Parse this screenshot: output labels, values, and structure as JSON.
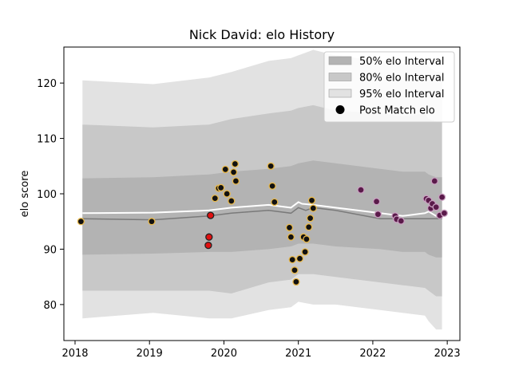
{
  "chart_data": {
    "type": "scatter",
    "title": "Nick David: elo History",
    "xlabel": "",
    "ylabel": "elo score",
    "xlim": [
      2017.85,
      2023.17
    ],
    "ylim": [
      73.5,
      126.5
    ],
    "x_ticks": [
      2018,
      2019,
      2020,
      2021,
      2022,
      2023
    ],
    "x_tick_labels": [
      "2018",
      "2019",
      "2020",
      "2021",
      "2022",
      "2023"
    ],
    "y_ticks": [
      80,
      90,
      100,
      110,
      120
    ],
    "y_tick_labels": [
      "80",
      "90",
      "100",
      "110",
      "120"
    ],
    "grid": false,
    "legend_position": "top-right",
    "legend": [
      {
        "label": "50% elo Interval",
        "kind": "band",
        "color": "#b3b3b3"
      },
      {
        "label": "80% elo Interval",
        "kind": "band",
        "color": "#c8c8c8"
      },
      {
        "label": "95% elo Interval",
        "kind": "band",
        "color": "#e2e2e2"
      },
      {
        "label": "Post Match elo",
        "kind": "marker",
        "color": "#000000"
      }
    ],
    "band_x": [
      2018.1,
      2019.05,
      2019.8,
      2020.1,
      2020.6,
      2020.9,
      2021.0,
      2021.2,
      2021.5,
      2022.1,
      2022.4,
      2022.7,
      2022.75,
      2022.85,
      2022.93
    ],
    "bands": {
      "p95": {
        "upper": [
          120.5,
          119.8,
          121.0,
          122.0,
          124.0,
          124.5,
          125.0,
          126.0,
          125.0,
          124.0,
          123.5,
          124.0,
          123.0,
          122.0,
          122.0
        ],
        "lower": [
          77.5,
          78.5,
          77.5,
          77.5,
          79.0,
          79.5,
          80.5,
          80.0,
          80.0,
          79.0,
          78.5,
          78.0,
          77.0,
          75.5,
          75.5
        ]
      },
      "p80": {
        "upper": [
          112.5,
          112.0,
          112.5,
          113.5,
          114.5,
          115.0,
          115.5,
          116.0,
          115.0,
          114.5,
          114.0,
          114.5,
          113.5,
          113.0,
          113.0
        ],
        "lower": [
          82.5,
          82.5,
          82.5,
          82.0,
          84.0,
          84.5,
          85.5,
          85.5,
          85.0,
          84.0,
          83.5,
          83.0,
          82.5,
          81.5,
          81.5
        ]
      },
      "p50": {
        "upper": [
          102.8,
          103.0,
          103.5,
          104.0,
          104.5,
          105.0,
          105.5,
          106.0,
          105.5,
          104.5,
          104.0,
          104.0,
          103.5,
          103.0,
          103.0
        ],
        "lower": [
          89.0,
          89.2,
          89.5,
          89.5,
          90.0,
          90.5,
          91.0,
          91.0,
          90.5,
          90.0,
          89.5,
          89.5,
          89.0,
          88.5,
          88.5
        ]
      }
    },
    "mean_line": {
      "x": [
        2018.1,
        2019.05,
        2019.8,
        2020.1,
        2020.6,
        2020.9,
        2021.0,
        2021.1,
        2021.2,
        2021.5,
        2022.1,
        2022.4,
        2022.7,
        2022.8,
        2022.93
      ],
      "y": [
        95.5,
        95.3,
        96.0,
        96.5,
        97.0,
        96.5,
        97.5,
        97.0,
        97.5,
        97.0,
        95.5,
        95.5,
        95.5,
        95.5,
        95.5
      ]
    },
    "median_line": {
      "x": [
        2018.1,
        2019.05,
        2019.8,
        2020.1,
        2020.6,
        2020.9,
        2021.0,
        2021.05,
        2021.2,
        2021.5,
        2022.1,
        2022.4,
        2022.7,
        2022.75,
        2022.85,
        2022.93
      ],
      "y": [
        96.5,
        96.6,
        97.0,
        97.5,
        98.0,
        97.5,
        98.5,
        98.2,
        98.0,
        97.5,
        96.5,
        96.0,
        96.5,
        96.8,
        96.0,
        96.2
      ]
    },
    "series": [
      {
        "style": "gold-edge",
        "fill": "#111111",
        "edge": "#e8b84a",
        "points": [
          [
            2018.08,
            95.0
          ],
          [
            2019.03,
            95.0
          ],
          [
            2019.88,
            99.2
          ],
          [
            2019.93,
            101.0
          ],
          [
            2019.96,
            101.1
          ],
          [
            2020.02,
            104.4
          ],
          [
            2020.04,
            100.0
          ],
          [
            2020.1,
            98.7
          ],
          [
            2020.13,
            103.9
          ],
          [
            2020.15,
            105.4
          ],
          [
            2020.16,
            102.3
          ],
          [
            2020.63,
            105.0
          ],
          [
            2020.65,
            101.4
          ],
          [
            2020.68,
            98.5
          ],
          [
            2020.88,
            93.9
          ],
          [
            2020.9,
            92.2
          ],
          [
            2020.92,
            88.1
          ],
          [
            2020.95,
            86.2
          ],
          [
            2020.97,
            84.1
          ],
          [
            2021.02,
            88.3
          ],
          [
            2021.07,
            92.2
          ],
          [
            2021.09,
            89.5
          ],
          [
            2021.11,
            91.8
          ],
          [
            2021.14,
            94.0
          ],
          [
            2021.16,
            95.6
          ],
          [
            2021.18,
            98.8
          ],
          [
            2021.2,
            97.4
          ]
        ]
      },
      {
        "style": "red",
        "fill": "#e01010",
        "edge": "#222222",
        "points": [
          [
            2019.79,
            90.7
          ],
          [
            2019.8,
            92.2
          ],
          [
            2019.82,
            96.1
          ]
        ]
      },
      {
        "style": "purple",
        "fill": "#5a1a4a",
        "edge": "#c9a0c0",
        "points": [
          [
            2021.84,
            100.7
          ],
          [
            2022.05,
            98.6
          ],
          [
            2022.07,
            96.3
          ],
          [
            2022.3,
            96.0
          ],
          [
            2022.32,
            95.4
          ],
          [
            2022.38,
            95.1
          ],
          [
            2022.72,
            99.1
          ],
          [
            2022.75,
            98.8
          ],
          [
            2022.78,
            97.4
          ],
          [
            2022.8,
            98.2
          ],
          [
            2022.83,
            102.3
          ],
          [
            2022.85,
            97.6
          ],
          [
            2022.9,
            96.1
          ],
          [
            2022.93,
            99.4
          ],
          [
            2022.96,
            96.5
          ]
        ]
      }
    ]
  }
}
